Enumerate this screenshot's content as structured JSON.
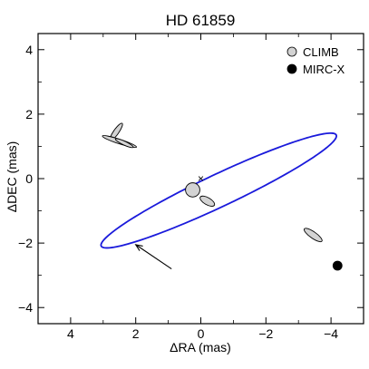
{
  "chart_data": {
    "type": "scatter",
    "title": "HD 61859",
    "xlabel": "ΔRA (mas)",
    "ylabel": "ΔDEC (mas)",
    "xlim": [
      5.0,
      -5.0
    ],
    "ylim": [
      -4.5,
      4.5
    ],
    "x_ticks": [
      4,
      2,
      0,
      -2,
      -4
    ],
    "x_tick_labels": [
      "4",
      "2",
      "0",
      "−2",
      "−4"
    ],
    "y_ticks": [
      4,
      2,
      0,
      -2,
      -4
    ],
    "y_tick_labels": [
      "4",
      "2",
      "0",
      "−2",
      "−4"
    ],
    "grid": false,
    "legend_position": "top-right",
    "legend": [
      {
        "label": "CLIMB",
        "marker": "circle",
        "color": "#d3d3d3"
      },
      {
        "label": "MIRC-X",
        "marker": "circle",
        "color": "#000000"
      }
    ],
    "primary_star": {
      "marker": "×",
      "x": 0.0,
      "y": 0.0
    },
    "orbit": {
      "color": "#1a1adb",
      "center": [
        -0.55,
        -0.37
      ],
      "semi_major": 4.0,
      "semi_minor": 0.5,
      "major_axis_angle_deg": -25.5
    },
    "series": [
      {
        "name": "CLIMB",
        "color": "#d3d3d3",
        "points": [
          {
            "x": 2.6,
            "y": 1.45,
            "err_a": 0.32,
            "err_b": 0.08,
            "err_angle_deg": 55
          },
          {
            "x": 2.5,
            "y": 1.15,
            "err_a": 0.55,
            "err_b": 0.07,
            "err_angle_deg": -18
          },
          {
            "x": 2.35,
            "y": 1.1,
            "err_a": 0.3,
            "err_b": 0.06,
            "err_angle_deg": -25
          },
          {
            "x": 0.25,
            "y": -0.35,
            "err_a": 0.22,
            "err_b": 0.22,
            "err_angle_deg": 0
          },
          {
            "x": -0.2,
            "y": -0.7,
            "err_a": 0.25,
            "err_b": 0.11,
            "err_angle_deg": -30
          },
          {
            "x": -3.45,
            "y": -1.75,
            "err_a": 0.33,
            "err_b": 0.1,
            "err_angle_deg": -35
          }
        ]
      },
      {
        "name": "MIRC-X",
        "color": "#000000",
        "points": [
          {
            "x": -4.2,
            "y": -2.7
          }
        ]
      }
    ],
    "direction_arrow": {
      "from": [
        0.9,
        -2.8
      ],
      "to": [
        2.0,
        -2.05
      ]
    }
  }
}
